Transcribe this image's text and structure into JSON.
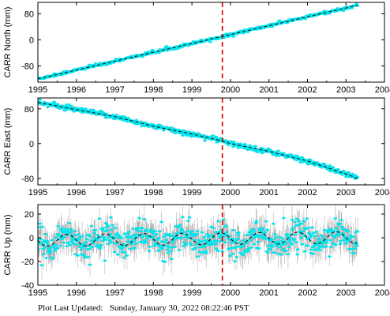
{
  "footer": {
    "label": "Plot Last Updated:",
    "timestamp": "Sunday, January 30, 2022 08:22:46 PST"
  },
  "colors": {
    "data": "#00e5ee",
    "error_bar": "#b3b3b3",
    "model": "#000000",
    "event_line": "#cc0000"
  },
  "chart_data": [
    {
      "type": "scatter",
      "station": "CARR",
      "component": "North",
      "ylabel": "CARR North (mm)",
      "xlim": [
        1995,
        2004
      ],
      "ylim": [
        -130,
        115
      ],
      "xticks": [
        1995,
        1996,
        1997,
        1998,
        1999,
        2000,
        2001,
        2002,
        2003,
        2004
      ],
      "yticks": [
        80,
        0,
        -80
      ],
      "event_line_x": 1999.79,
      "data_span": [
        1995.0,
        2003.3
      ],
      "series": [
        {
          "name": "",
          "style": "cyan points with gray error bars",
          "trend_points": [
            [
              1995.0,
              -120
            ],
            [
              2003.3,
              106
            ]
          ],
          "noise_mm": 2.5,
          "error_mm": 3
        },
        {
          "name": "",
          "style": "black dashed model",
          "points": [
            [
              1995.0,
              -120
            ],
            [
              2003.3,
              106
            ]
          ]
        }
      ]
    },
    {
      "type": "scatter",
      "station": "CARR",
      "component": "East",
      "ylabel": "CARR East (mm)",
      "xlim": [
        1995,
        2004
      ],
      "ylim": [
        -95,
        105
      ],
      "xticks": [
        1995,
        1996,
        1997,
        1998,
        1999,
        2000,
        2001,
        2002,
        2003,
        2004
      ],
      "yticks": [
        80,
        0,
        -80
      ],
      "event_line_x": 1999.79,
      "data_span": [
        1995.0,
        2003.3
      ],
      "series": [
        {
          "name": "",
          "style": "cyan points with gray error bars",
          "trend_points": [
            [
              1995.0,
              95
            ],
            [
              1996.0,
              78
            ],
            [
              1997.0,
              62
            ],
            [
              1998.0,
              40
            ],
            [
              1999.0,
              22
            ],
            [
              1999.79,
              6
            ],
            [
              2000.0,
              0
            ],
            [
              2001.0,
              -18
            ],
            [
              2002.0,
              -40
            ],
            [
              2003.0,
              -70
            ],
            [
              2003.3,
              -80
            ]
          ],
          "noise_mm": 3,
          "error_mm": 4
        },
        {
          "name": "",
          "style": "black dashed model",
          "points": [
            [
              1995.0,
              95
            ],
            [
              1996.0,
              78
            ],
            [
              1997.0,
              62
            ],
            [
              1998.0,
              40
            ],
            [
              1999.0,
              22
            ],
            [
              1999.79,
              6
            ],
            [
              2000.0,
              0
            ],
            [
              2001.0,
              -18
            ],
            [
              2002.0,
              -40
            ],
            [
              2003.0,
              -70
            ],
            [
              2003.3,
              -80
            ]
          ]
        }
      ]
    },
    {
      "type": "scatter",
      "station": "CARR",
      "component": "Up",
      "ylabel": "CARR Up (mm)",
      "xlim": [
        1995,
        2004
      ],
      "ylim": [
        -40,
        28
      ],
      "xticks": [
        1995,
        1996,
        1997,
        1998,
        1999,
        2000,
        2001,
        2002,
        2003,
        2004
      ],
      "yticks": [
        20,
        0,
        -20,
        -40
      ],
      "event_line_x": 1999.79,
      "data_span": [
        1995.0,
        2003.3
      ],
      "series": [
        {
          "name": "",
          "style": "cyan points with gray error bars",
          "model": "seasonal",
          "offset_mm": -1,
          "trend_mm_per_yr": 0.3,
          "annual_amplitude_mm": 5,
          "phase_yr": 0.5,
          "noise_mm": 6,
          "error_mm": 9
        },
        {
          "name": "",
          "style": "black dashed model",
          "model": "seasonal",
          "offset_mm": -1,
          "trend_mm_per_yr": 0.3,
          "annual_amplitude_mm": 5,
          "phase_yr": 0.5
        }
      ]
    }
  ]
}
